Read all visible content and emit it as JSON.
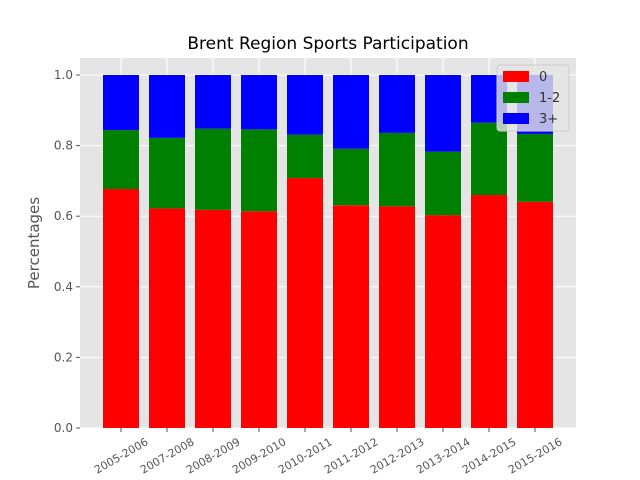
{
  "chart_data": {
    "type": "bar",
    "stacked": true,
    "title": "Brent Region Sports Participation",
    "xlabel": "",
    "ylabel": "Percentages",
    "ylim": [
      0,
      1.0
    ],
    "yticks": [
      "0.0",
      "0.2",
      "0.4",
      "0.6",
      "0.8",
      "1.0"
    ],
    "grid": true,
    "legend_position": "top-right",
    "categories": [
      "2005-2006",
      "2007-2008",
      "2008-2009",
      "2009-2010",
      "2010-2011",
      "2011-2012",
      "2012-2013",
      "2013-2014",
      "2014-2015",
      "2015-2016"
    ],
    "series": [
      {
        "name": "0",
        "color": "#ff0000",
        "values": [
          0.677,
          0.622,
          0.618,
          0.614,
          0.708,
          0.631,
          0.628,
          0.603,
          0.66,
          0.641
        ]
      },
      {
        "name": "1-2",
        "color": "#008000",
        "values": [
          0.167,
          0.2,
          0.23,
          0.232,
          0.123,
          0.16,
          0.208,
          0.18,
          0.205,
          0.192
        ]
      },
      {
        "name": "3+",
        "color": "#0000ff",
        "values": [
          0.156,
          0.178,
          0.152,
          0.154,
          0.169,
          0.209,
          0.164,
          0.217,
          0.135,
          0.167
        ]
      }
    ]
  }
}
